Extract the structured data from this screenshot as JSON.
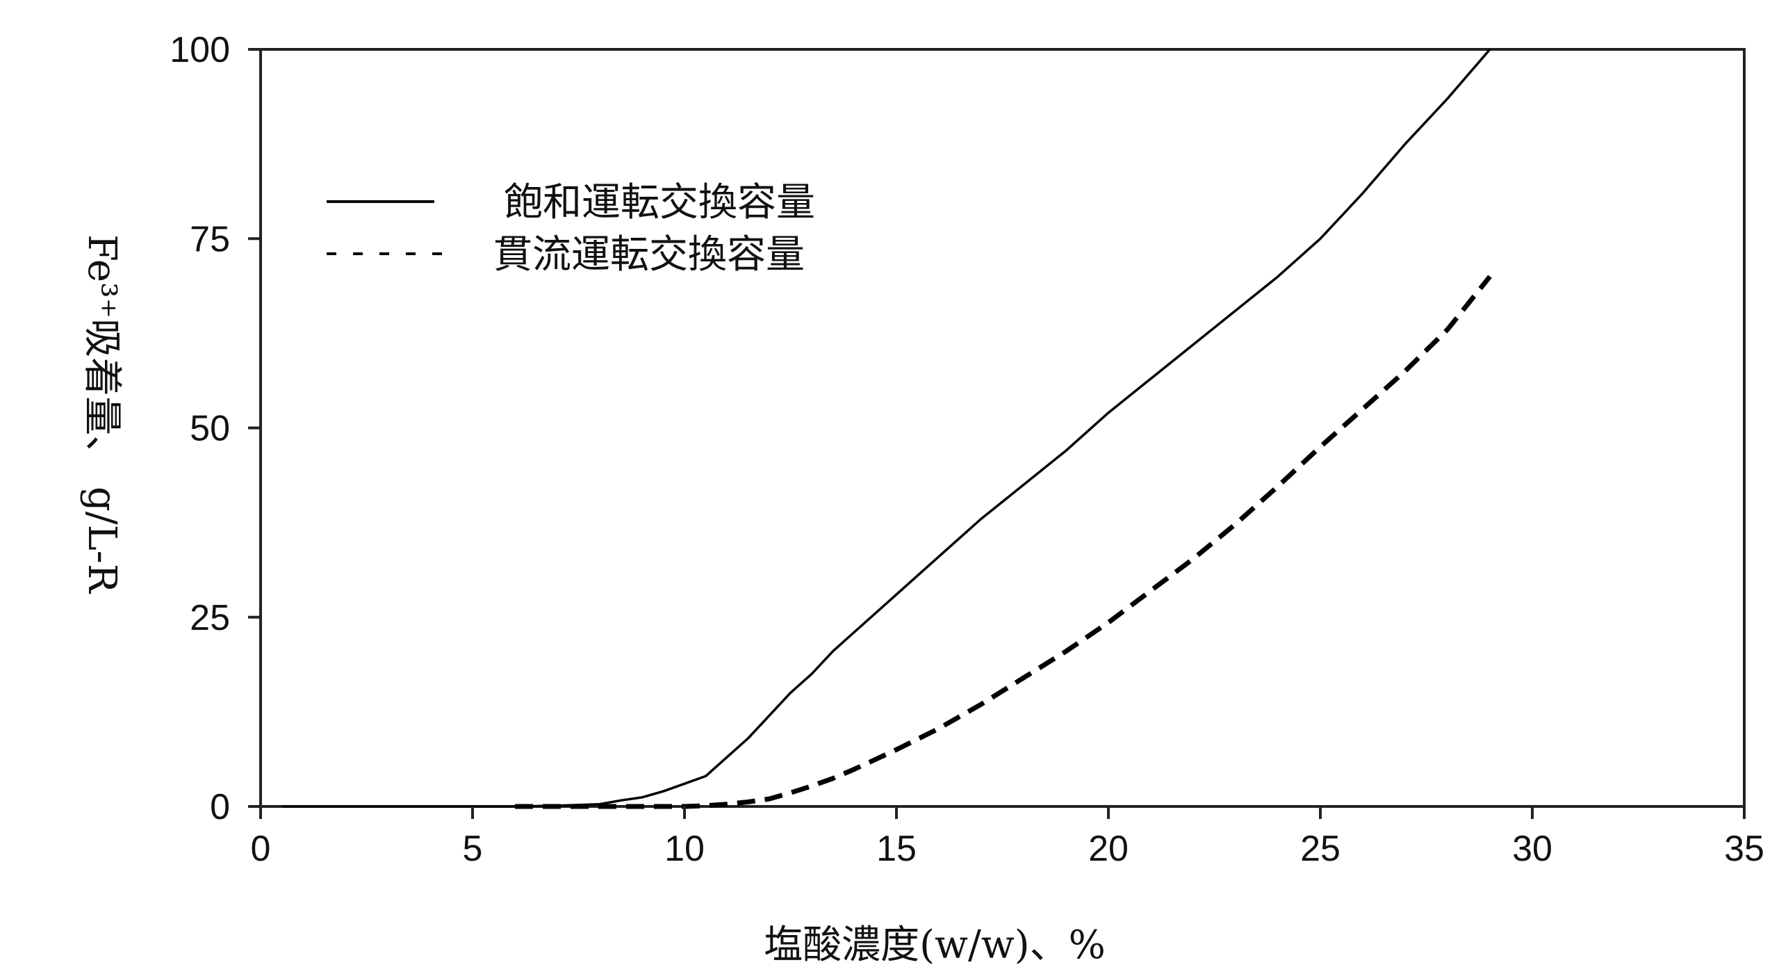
{
  "chart_data": {
    "type": "line",
    "title": "",
    "xlabel": "塩酸濃度(w/w)、%",
    "ylabel": "Fe³⁺吸着量、 g/L-R",
    "xlim": [
      0,
      35
    ],
    "ylim": [
      0,
      100
    ],
    "xticks": [
      "0",
      "5",
      "10",
      "15",
      "20",
      "25",
      "30",
      "35"
    ],
    "yticks": [
      "0",
      "25",
      "50",
      "75",
      "100"
    ],
    "grid": false,
    "legend_position": "top-left",
    "series": [
      {
        "name": "飽和運転交換容量",
        "style": "solid",
        "color": "#000000",
        "x": [
          0.5,
          5,
          6,
          7,
          8,
          8.5,
          9,
          9.5,
          10,
          10.5,
          11,
          11.5,
          12,
          12.5,
          13,
          13.5,
          14,
          14.5,
          15,
          16,
          17,
          18,
          19,
          20,
          21,
          22,
          23,
          24,
          25,
          26,
          27,
          28,
          29
        ],
        "y": [
          0,
          0,
          0,
          0.1,
          0.3,
          0.8,
          1.2,
          2,
          3,
          4,
          6.5,
          9,
          12,
          15,
          17.5,
          20.5,
          23,
          25.5,
          28,
          33,
          38,
          42.5,
          47,
          52,
          56.5,
          61,
          65.5,
          70,
          75,
          81,
          87.5,
          93.5,
          100
        ]
      },
      {
        "name": "貫流運転交換容量",
        "style": "dashed",
        "color": "#000000",
        "x": [
          6,
          7,
          8,
          9,
          10,
          10.5,
          11,
          11.5,
          12,
          12.5,
          13,
          13.5,
          14,
          14.5,
          15,
          16,
          17,
          18,
          19,
          20,
          21,
          22,
          23,
          24,
          25,
          26,
          27,
          28,
          29
        ],
        "y": [
          0,
          0,
          0,
          0,
          0,
          0.1,
          0.3,
          0.6,
          1,
          1.8,
          2.7,
          3.7,
          4.9,
          6.2,
          7.5,
          10.3,
          13.5,
          17,
          20.5,
          24.3,
          28.5,
          32.7,
          37.3,
          42.3,
          47.5,
          52.5,
          57.5,
          63,
          70
        ]
      }
    ]
  }
}
